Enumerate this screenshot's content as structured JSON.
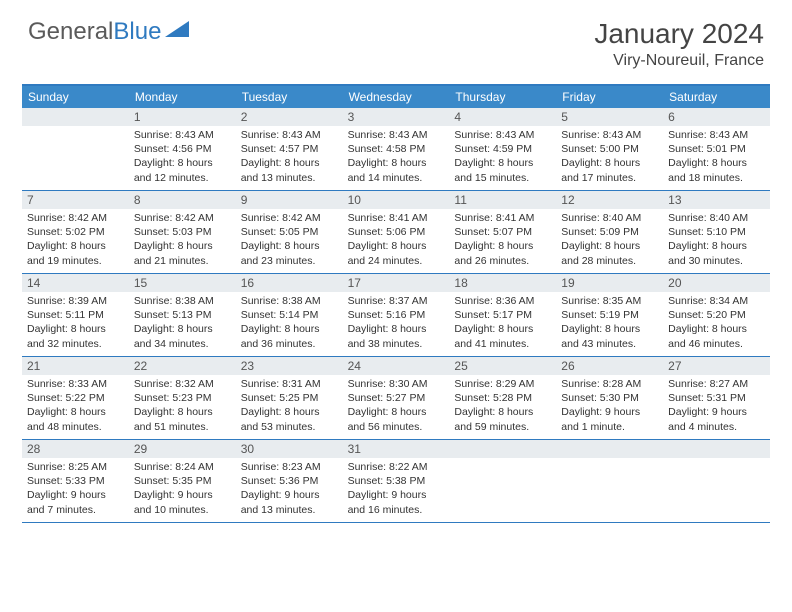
{
  "logo": {
    "part1": "General",
    "part2": "Blue"
  },
  "title": "January 2024",
  "location": "Viry-Noureuil, France",
  "colors": {
    "header_bar": "#3a89c9",
    "accent": "#2f7ac0",
    "daynum_bg": "#e8ecef",
    "text": "#333333",
    "logo_gray": "#5a5a5a"
  },
  "weekdays": [
    "Sunday",
    "Monday",
    "Tuesday",
    "Wednesday",
    "Thursday",
    "Friday",
    "Saturday"
  ],
  "weeks": [
    [
      {
        "n": "",
        "sr": "",
        "ss": "",
        "d1": "",
        "d2": ""
      },
      {
        "n": "1",
        "sr": "Sunrise: 8:43 AM",
        "ss": "Sunset: 4:56 PM",
        "d1": "Daylight: 8 hours",
        "d2": "and 12 minutes."
      },
      {
        "n": "2",
        "sr": "Sunrise: 8:43 AM",
        "ss": "Sunset: 4:57 PM",
        "d1": "Daylight: 8 hours",
        "d2": "and 13 minutes."
      },
      {
        "n": "3",
        "sr": "Sunrise: 8:43 AM",
        "ss": "Sunset: 4:58 PM",
        "d1": "Daylight: 8 hours",
        "d2": "and 14 minutes."
      },
      {
        "n": "4",
        "sr": "Sunrise: 8:43 AM",
        "ss": "Sunset: 4:59 PM",
        "d1": "Daylight: 8 hours",
        "d2": "and 15 minutes."
      },
      {
        "n": "5",
        "sr": "Sunrise: 8:43 AM",
        "ss": "Sunset: 5:00 PM",
        "d1": "Daylight: 8 hours",
        "d2": "and 17 minutes."
      },
      {
        "n": "6",
        "sr": "Sunrise: 8:43 AM",
        "ss": "Sunset: 5:01 PM",
        "d1": "Daylight: 8 hours",
        "d2": "and 18 minutes."
      }
    ],
    [
      {
        "n": "7",
        "sr": "Sunrise: 8:42 AM",
        "ss": "Sunset: 5:02 PM",
        "d1": "Daylight: 8 hours",
        "d2": "and 19 minutes."
      },
      {
        "n": "8",
        "sr": "Sunrise: 8:42 AM",
        "ss": "Sunset: 5:03 PM",
        "d1": "Daylight: 8 hours",
        "d2": "and 21 minutes."
      },
      {
        "n": "9",
        "sr": "Sunrise: 8:42 AM",
        "ss": "Sunset: 5:05 PM",
        "d1": "Daylight: 8 hours",
        "d2": "and 23 minutes."
      },
      {
        "n": "10",
        "sr": "Sunrise: 8:41 AM",
        "ss": "Sunset: 5:06 PM",
        "d1": "Daylight: 8 hours",
        "d2": "and 24 minutes."
      },
      {
        "n": "11",
        "sr": "Sunrise: 8:41 AM",
        "ss": "Sunset: 5:07 PM",
        "d1": "Daylight: 8 hours",
        "d2": "and 26 minutes."
      },
      {
        "n": "12",
        "sr": "Sunrise: 8:40 AM",
        "ss": "Sunset: 5:09 PM",
        "d1": "Daylight: 8 hours",
        "d2": "and 28 minutes."
      },
      {
        "n": "13",
        "sr": "Sunrise: 8:40 AM",
        "ss": "Sunset: 5:10 PM",
        "d1": "Daylight: 8 hours",
        "d2": "and 30 minutes."
      }
    ],
    [
      {
        "n": "14",
        "sr": "Sunrise: 8:39 AM",
        "ss": "Sunset: 5:11 PM",
        "d1": "Daylight: 8 hours",
        "d2": "and 32 minutes."
      },
      {
        "n": "15",
        "sr": "Sunrise: 8:38 AM",
        "ss": "Sunset: 5:13 PM",
        "d1": "Daylight: 8 hours",
        "d2": "and 34 minutes."
      },
      {
        "n": "16",
        "sr": "Sunrise: 8:38 AM",
        "ss": "Sunset: 5:14 PM",
        "d1": "Daylight: 8 hours",
        "d2": "and 36 minutes."
      },
      {
        "n": "17",
        "sr": "Sunrise: 8:37 AM",
        "ss": "Sunset: 5:16 PM",
        "d1": "Daylight: 8 hours",
        "d2": "and 38 minutes."
      },
      {
        "n": "18",
        "sr": "Sunrise: 8:36 AM",
        "ss": "Sunset: 5:17 PM",
        "d1": "Daylight: 8 hours",
        "d2": "and 41 minutes."
      },
      {
        "n": "19",
        "sr": "Sunrise: 8:35 AM",
        "ss": "Sunset: 5:19 PM",
        "d1": "Daylight: 8 hours",
        "d2": "and 43 minutes."
      },
      {
        "n": "20",
        "sr": "Sunrise: 8:34 AM",
        "ss": "Sunset: 5:20 PM",
        "d1": "Daylight: 8 hours",
        "d2": "and 46 minutes."
      }
    ],
    [
      {
        "n": "21",
        "sr": "Sunrise: 8:33 AM",
        "ss": "Sunset: 5:22 PM",
        "d1": "Daylight: 8 hours",
        "d2": "and 48 minutes."
      },
      {
        "n": "22",
        "sr": "Sunrise: 8:32 AM",
        "ss": "Sunset: 5:23 PM",
        "d1": "Daylight: 8 hours",
        "d2": "and 51 minutes."
      },
      {
        "n": "23",
        "sr": "Sunrise: 8:31 AM",
        "ss": "Sunset: 5:25 PM",
        "d1": "Daylight: 8 hours",
        "d2": "and 53 minutes."
      },
      {
        "n": "24",
        "sr": "Sunrise: 8:30 AM",
        "ss": "Sunset: 5:27 PM",
        "d1": "Daylight: 8 hours",
        "d2": "and 56 minutes."
      },
      {
        "n": "25",
        "sr": "Sunrise: 8:29 AM",
        "ss": "Sunset: 5:28 PM",
        "d1": "Daylight: 8 hours",
        "d2": "and 59 minutes."
      },
      {
        "n": "26",
        "sr": "Sunrise: 8:28 AM",
        "ss": "Sunset: 5:30 PM",
        "d1": "Daylight: 9 hours",
        "d2": "and 1 minute."
      },
      {
        "n": "27",
        "sr": "Sunrise: 8:27 AM",
        "ss": "Sunset: 5:31 PM",
        "d1": "Daylight: 9 hours",
        "d2": "and 4 minutes."
      }
    ],
    [
      {
        "n": "28",
        "sr": "Sunrise: 8:25 AM",
        "ss": "Sunset: 5:33 PM",
        "d1": "Daylight: 9 hours",
        "d2": "and 7 minutes."
      },
      {
        "n": "29",
        "sr": "Sunrise: 8:24 AM",
        "ss": "Sunset: 5:35 PM",
        "d1": "Daylight: 9 hours",
        "d2": "and 10 minutes."
      },
      {
        "n": "30",
        "sr": "Sunrise: 8:23 AM",
        "ss": "Sunset: 5:36 PM",
        "d1": "Daylight: 9 hours",
        "d2": "and 13 minutes."
      },
      {
        "n": "31",
        "sr": "Sunrise: 8:22 AM",
        "ss": "Sunset: 5:38 PM",
        "d1": "Daylight: 9 hours",
        "d2": "and 16 minutes."
      },
      {
        "n": "",
        "sr": "",
        "ss": "",
        "d1": "",
        "d2": ""
      },
      {
        "n": "",
        "sr": "",
        "ss": "",
        "d1": "",
        "d2": ""
      },
      {
        "n": "",
        "sr": "",
        "ss": "",
        "d1": "",
        "d2": ""
      }
    ]
  ]
}
